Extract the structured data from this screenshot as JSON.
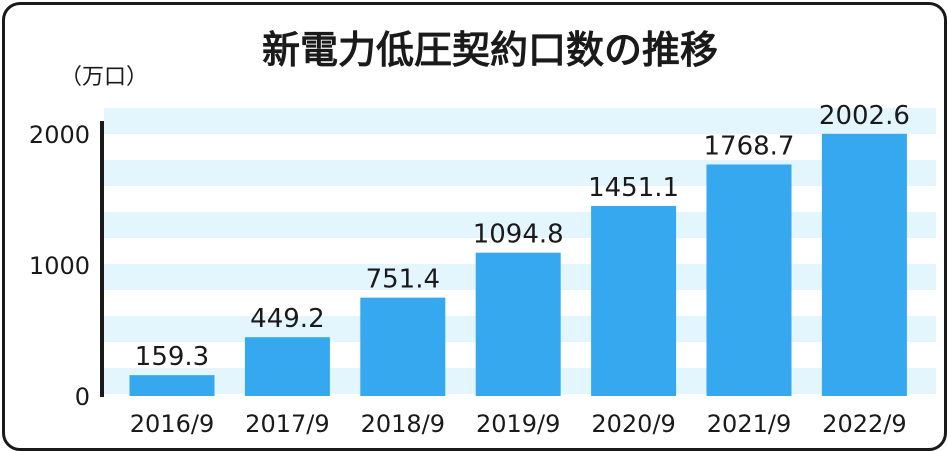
{
  "chart_data": {
    "type": "bar",
    "title": "新電力低圧契約口数の推移",
    "unit": "（万口）",
    "categories": [
      "2016/9",
      "2017/9",
      "2018/9",
      "2019/9",
      "2020/9",
      "2021/9",
      "2022/9"
    ],
    "values": [
      159.3,
      449.2,
      751.4,
      1094.8,
      1451.1,
      1768.7,
      2002.6
    ],
    "value_labels": [
      "159.3",
      "449.2",
      "751.4",
      "1094.8",
      "1451.1",
      "1768.7",
      "2002.6"
    ],
    "yticks": [
      "0",
      "1000",
      "2000"
    ],
    "ytick_values": [
      0,
      1000,
      2000
    ],
    "ylim": [
      0,
      2200
    ],
    "bar_color": "#35a8f0",
    "stripe_color": "#e3f5fd",
    "grid": false,
    "legend": "none"
  }
}
